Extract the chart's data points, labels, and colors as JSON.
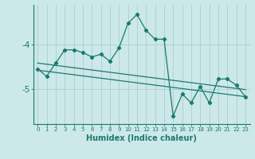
{
  "xlabel": "Humidex (Indice chaleur)",
  "bg_color": "#cce8e8",
  "grid_color": "#aacfcf",
  "line_color": "#1a7a6e",
  "x": [
    0,
    1,
    2,
    3,
    4,
    5,
    6,
    7,
    8,
    9,
    10,
    11,
    12,
    13,
    14,
    15,
    16,
    17,
    18,
    19,
    20,
    21,
    22,
    23
  ],
  "line1": [
    -4.55,
    -4.72,
    -4.42,
    -4.12,
    -4.12,
    -4.18,
    -4.28,
    -4.22,
    -4.38,
    -4.08,
    -3.52,
    -3.32,
    -3.68,
    -3.88,
    -3.88,
    -5.62,
    -5.12,
    -5.32,
    -4.95,
    -5.32,
    -4.78,
    -4.78,
    -4.92,
    -5.18
  ],
  "line2_x": [
    0,
    23
  ],
  "line2_y": [
    -4.42,
    -5.02
  ],
  "line3_x": [
    0,
    23
  ],
  "line3_y": [
    -4.58,
    -5.18
  ],
  "yticks": [
    -5,
    -4
  ],
  "ylim": [
    -5.8,
    -3.1
  ],
  "xlim": [
    -0.5,
    23.5
  ]
}
